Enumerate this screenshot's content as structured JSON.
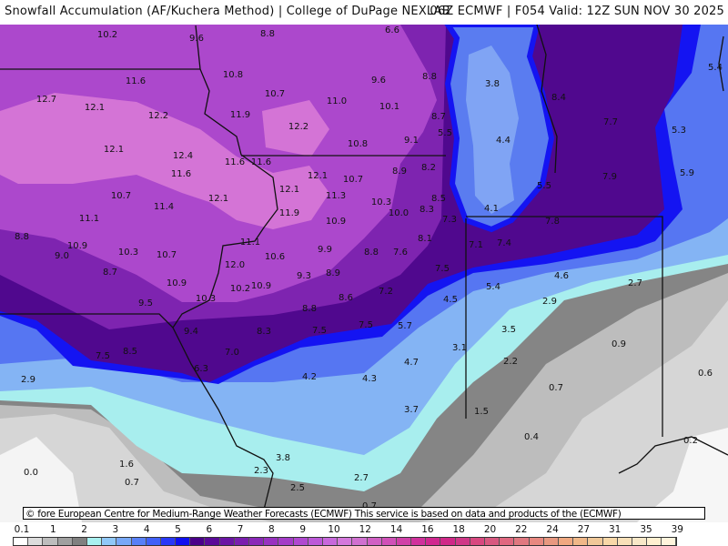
{
  "header": {
    "title": "Snowfall Accumulation (AF/Kuchera Method) | College of DuPage NEXLAB",
    "run_info": "06Z ECMWF | F054 Valid: 12Z SUN NOV 30 2025"
  },
  "credit": "© fore European Centre for Medium-Range Weather Forecasts (ECMWF)  This service is based on data and products of the (ECMWF)",
  "map": {
    "labels": [
      "10.2",
      "9.6",
      "8.8",
      "6.6",
      "11.6",
      "10.8",
      "9.6",
      "8.8",
      "12.7",
      "12.1",
      "12.2",
      "10.7",
      "11.0",
      "10.1",
      "8.7",
      "11.9",
      "12.2",
      "5.5",
      "10.8",
      "9.1",
      "12.1",
      "12.4",
      "11.6",
      "11.6",
      "8.9",
      "8.2",
      "11.6",
      "12.1",
      "10.7",
      "12.1",
      "11.3",
      "10.7",
      "11.4",
      "12.1",
      "10.3",
      "8.5",
      "10.0",
      "8.3",
      "11.9",
      "10.9",
      "7.3",
      "11.1",
      "8.8",
      "10.9",
      "9.0",
      "10.3",
      "10.7",
      "11.1",
      "10.6",
      "9.9",
      "8.8",
      "7.6",
      "8.1",
      "7.1",
      "7.4",
      "12.0",
      "8.7",
      "10.9",
      "10.2",
      "10.9",
      "9.3",
      "8.9",
      "10.3",
      "9.5",
      "8.6",
      "8.8",
      "7.2",
      "7.5",
      "4.5",
      "5.4",
      "4.6",
      "2.7",
      "2.9",
      "3.8",
      "4.4",
      "4.1",
      "8.4",
      "7.7",
      "5.3",
      "7.9",
      "5.9",
      "5.5",
      "7.8",
      "5.4",
      "8.3",
      "9.4",
      "7.5",
      "8.5",
      "7.0",
      "6.3",
      "7.5",
      "7.5",
      "5.7",
      "3.5",
      "2.9",
      "4.2",
      "4.3",
      "4.7",
      "3.1",
      "2.2",
      "0.9",
      "0.6",
      "0.7",
      "3.7",
      "1.5",
      "0.4",
      "0.2",
      "0.0",
      "1.6",
      "0.7",
      "3.8",
      "2.3",
      "2.7",
      "2.5",
      "0.7"
    ]
  },
  "legend": {
    "units_labels": [
      "0.1",
      "1",
      "2",
      "3",
      "4",
      "5",
      "6",
      "7",
      "8",
      "9",
      "10",
      "12",
      "14",
      "16",
      "18",
      "20",
      "22",
      "24",
      "27",
      "31",
      "35",
      "39"
    ],
    "colors": [
      "#ffffff",
      "#dcdcdc",
      "#bdbdbd",
      "#a0a0a0",
      "#808080",
      "#a8f0f0",
      "#90c8f8",
      "#78a8f8",
      "#5880f8",
      "#4060f8",
      "#2838f8",
      "#1010f0",
      "#4a008a",
      "#5a0a98",
      "#6a14a4",
      "#7a1eae",
      "#8a28b8",
      "#9832c0",
      "#a43cc8",
      "#b048d0",
      "#bc58d8",
      "#c868dc",
      "#d478dc",
      "#d070d0",
      "#d060c4",
      "#d050b8",
      "#d040a8",
      "#d0309c",
      "#d02890",
      "#d02888",
      "#d03888",
      "#d84880",
      "#d85880",
      "#e06880",
      "#e07880",
      "#e88880",
      "#e89880",
      "#f0a880",
      "#f0b888",
      "#f0c898",
      "#f8d8a8",
      "#f8e0b8",
      "#f8e8c8",
      "#fff0d0",
      "#fff4dc"
    ]
  },
  "colors": {
    "lake": "#5a7cf0",
    "border": "#111111"
  }
}
